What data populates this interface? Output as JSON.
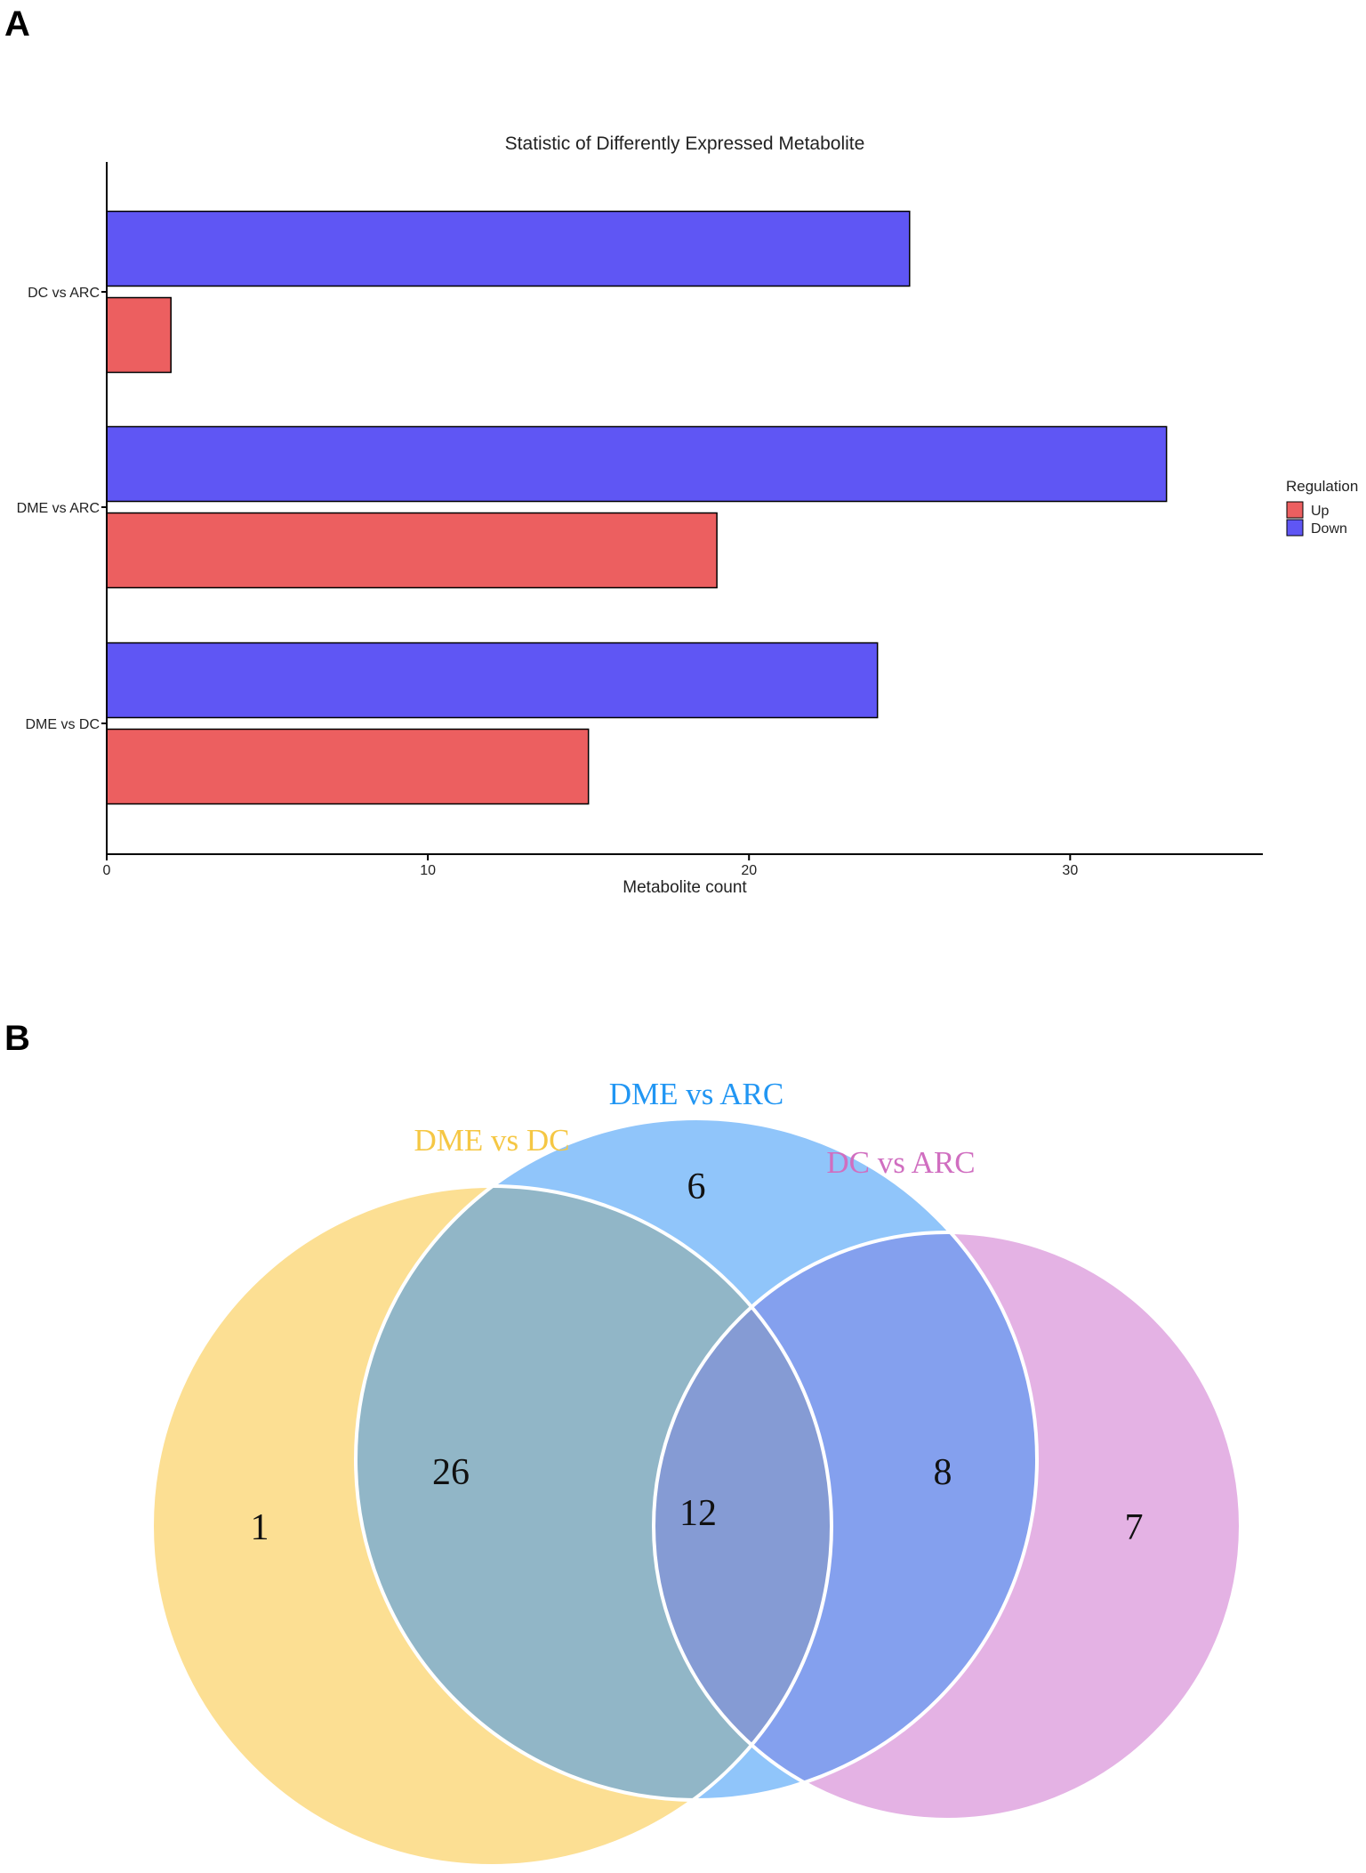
{
  "panels": {
    "a_label": "A",
    "b_label": "B"
  },
  "chart_data": [
    {
      "type": "bar",
      "orientation": "horizontal",
      "title": "Statistic of Differently Expressed Metabolite",
      "xlabel": "Metabolite count",
      "ylabel": "",
      "xlim": [
        0,
        36
      ],
      "x_ticks": [
        0,
        10,
        20,
        30
      ],
      "categories": [
        "DC vs ARC",
        "DME vs ARC",
        "DME vs DC"
      ],
      "series": [
        {
          "name": "Down",
          "color": "#5f56f4",
          "values": [
            25,
            33,
            24
          ]
        },
        {
          "name": "Up",
          "color": "#ec5f60",
          "values": [
            2,
            19,
            15
          ]
        }
      ],
      "legend": {
        "title": "Regulation",
        "position": "right",
        "entries": [
          {
            "label": "Up",
            "color": "#ec5f60"
          },
          {
            "label": "Down",
            "color": "#5f56f4"
          }
        ]
      },
      "grid": false
    },
    {
      "type": "venn",
      "sets": [
        {
          "name": "DME vs DC",
          "color": "#f5c744"
        },
        {
          "name": "DME vs ARC",
          "color": "#2196f3"
        },
        {
          "name": "DC vs ARC",
          "color": "#d06ec0"
        }
      ],
      "regions": {
        "only_dme_vs_dc": "1",
        "only_dme_vs_arc": "6",
        "only_dc_vs_arc": "7",
        "dme_vs_dc_and_dme_vs_arc": "26",
        "dme_vs_arc_and_dc_vs_arc": "8",
        "all_three": "12"
      }
    }
  ]
}
